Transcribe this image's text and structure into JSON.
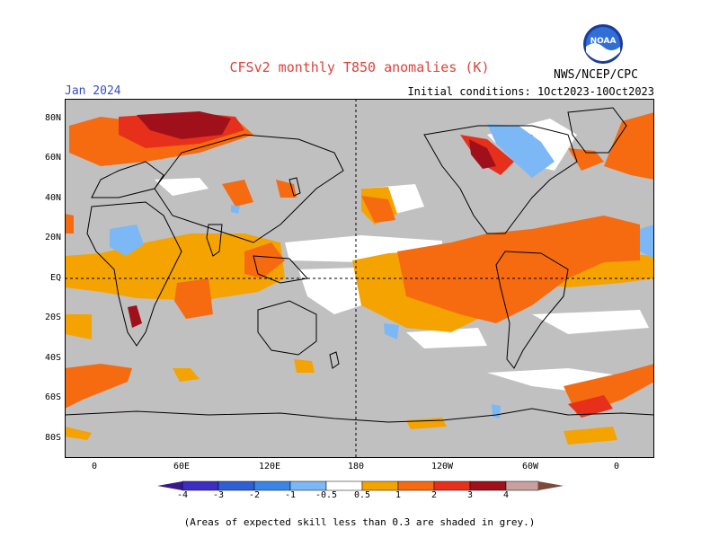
{
  "title": "CFSv2 monthly T850 anomalies (K)",
  "valid_month": "Jan 2024",
  "initial_conditions": "Initial conditions: 1Oct2023-10Oct2023",
  "agency": "NWS/NCEP/CPC",
  "logo_text": "NOAA",
  "footnote": "(Areas of expected skill less than 0.3 are shaded in grey.)",
  "map": {
    "latitude_labels": [
      "80N",
      "60N",
      "40N",
      "20N",
      "EQ",
      "20S",
      "40S",
      "60S",
      "80S"
    ],
    "longitude_labels": [
      "0",
      "60E",
      "120E",
      "180",
      "120W",
      "60W",
      "0"
    ]
  },
  "colorbar": {
    "labels": [
      "-4",
      "-3",
      "-2",
      "-1",
      "-0.5",
      "0.5",
      "1",
      "2",
      "3",
      "4"
    ],
    "colors": {
      "lt_-4": "#3a1a8a",
      "-4_-3": "#3c2ec4",
      "-3_-2": "#2e5fd4",
      "-2_-1": "#3a86e8",
      "-1_-0.5": "#7cb8f5",
      "-0.5_0.5": "#ffffff",
      "0.5_1": "#f5a300",
      "1_2": "#f66a10",
      "2_3": "#e6301c",
      "3_4": "#a0101a",
      "4_5": "#c8a0a0",
      "gt_5": "#7a4a3a"
    }
  },
  "skill_grey": "#c0c0c0"
}
